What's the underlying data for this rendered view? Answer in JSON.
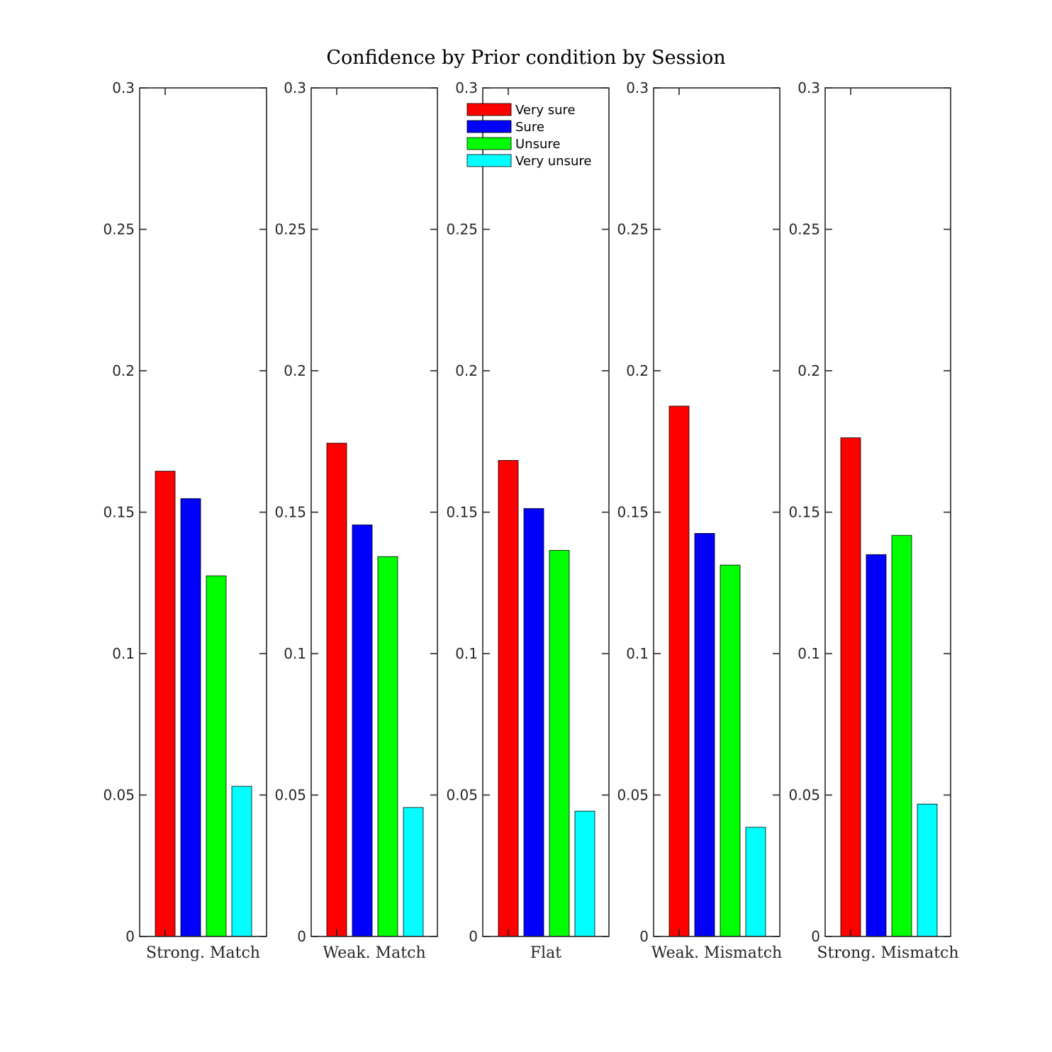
{
  "chart_data": {
    "type": "bar",
    "title": "Confidence by Prior condition by Session",
    "ylim": [
      0,
      0.3
    ],
    "yticks": [
      0,
      0.05,
      0.1,
      0.15,
      0.2,
      0.25,
      0.3
    ],
    "ytick_labels": [
      "0",
      "0.05",
      "0.1",
      "0.15",
      "0.2",
      "0.25",
      "0.3"
    ],
    "grid": false,
    "legend_placement": "top-left of third panel",
    "series": [
      {
        "name": "Very sure",
        "color": "#ff0000"
      },
      {
        "name": "Sure",
        "color": "#0000ff"
      },
      {
        "name": "Unsure",
        "color": "#00ff00"
      },
      {
        "name": "Very unsure",
        "color": "#00ffff"
      }
    ],
    "panels": [
      {
        "category": "Strong. Match",
        "values": [
          0.1645,
          0.1548,
          0.1275,
          0.0531
        ]
      },
      {
        "category": "Weak. Match",
        "values": [
          0.1744,
          0.1455,
          0.1343,
          0.0456
        ]
      },
      {
        "category": "Flat",
        "values": [
          0.1683,
          0.1513,
          0.1365,
          0.0443
        ]
      },
      {
        "category": "Weak. Mismatch",
        "values": [
          0.1875,
          0.1425,
          0.1313,
          0.0386
        ]
      },
      {
        "category": "Strong. Mismatch",
        "values": [
          0.1763,
          0.135,
          0.1418,
          0.0468
        ]
      }
    ]
  }
}
